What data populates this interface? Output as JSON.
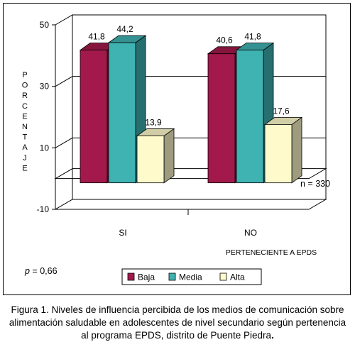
{
  "chart_data": {
    "type": "bar",
    "categories": [
      "SI",
      "NO"
    ],
    "series": [
      {
        "name": "Baja",
        "values": [
          41.8,
          40.6
        ],
        "color": "#a3194b"
      },
      {
        "name": "Media",
        "values": [
          44.2,
          41.8
        ],
        "color": "#3fb2b2"
      },
      {
        "name": "Alta",
        "values": [
          13.9,
          17.6
        ],
        "color": "#fffacc"
      }
    ],
    "data_labels": [
      [
        "41,8",
        "44,2",
        "13,9"
      ],
      [
        "40,6",
        "41,8",
        "17,6"
      ]
    ],
    "ylabel": "PORCENTAJE",
    "xlabel": "PERTENECIENTE A EPDS",
    "yticks": [
      "50",
      "30",
      "10",
      "-10"
    ],
    "ytick_values": [
      50,
      30,
      10,
      -10
    ],
    "ylim": [
      -10,
      50
    ],
    "grid": true,
    "legend_position": "bottom",
    "annotations": {
      "p_label": "p",
      "p_value": " = 0,66",
      "n_label": "n = 330"
    }
  },
  "caption": {
    "text": "Figura 1. Niveles  de influencia percibida de los medios de comunicación sobre alimentación saludable en adolescentes de nivel secundario según pertenencia al programa EPDS, distrito de Puente Piedra",
    "end": "."
  }
}
